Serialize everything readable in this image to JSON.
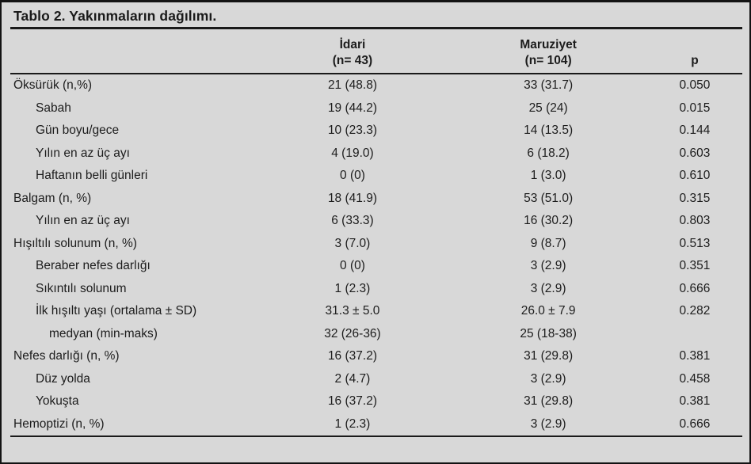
{
  "title": "Tablo 2. Yakınmaların dağılımı.",
  "colors": {
    "background": "#d8d8d8",
    "text": "#1c1c1c",
    "rule": "#1a1a1a",
    "frame_border": "#131313"
  },
  "table": {
    "col_headers": {
      "label": "",
      "idari_line1": "İdari",
      "idari_line2": "(n= 43)",
      "maruziyet_line1": "Maruziyet",
      "maruziyet_line2": "(n= 104)",
      "p": "p"
    },
    "rows": [
      {
        "label": "Öksürük (n,%)",
        "indent": 0,
        "idari": "21 (48.8)",
        "maruziyet": "33 (31.7)",
        "p": "0.050"
      },
      {
        "label": "Sabah",
        "indent": 1,
        "idari": "19 (44.2)",
        "maruziyet": "25 (24)",
        "p": "0.015"
      },
      {
        "label": "Gün boyu/gece",
        "indent": 1,
        "idari": "10 (23.3)",
        "maruziyet": "14 (13.5)",
        "p": "0.144"
      },
      {
        "label": "Yılın en az üç ayı",
        "indent": 1,
        "idari": "4 (19.0)",
        "maruziyet": "6 (18.2)",
        "p": "0.603"
      },
      {
        "label": "Haftanın belli günleri",
        "indent": 1,
        "idari": "0 (0)",
        "maruziyet": "1 (3.0)",
        "p": "0.610"
      },
      {
        "label": "Balgam (n, %)",
        "indent": 0,
        "idari": "18 (41.9)",
        "maruziyet": "53 (51.0)",
        "p": "0.315"
      },
      {
        "label": "Yılın en az üç ayı",
        "indent": 1,
        "idari": "6 (33.3)",
        "maruziyet": "16 (30.2)",
        "p": "0.803"
      },
      {
        "label": "Hışıltılı solunum (n, %)",
        "indent": 0,
        "idari": "3 (7.0)",
        "maruziyet": "9 (8.7)",
        "p": "0.513"
      },
      {
        "label": "Beraber nefes darlığı",
        "indent": 1,
        "idari": "0 (0)",
        "maruziyet": "3 (2.9)",
        "p": "0.351"
      },
      {
        "label": "Sıkıntılı solunum",
        "indent": 1,
        "idari": "1 (2.3)",
        "maruziyet": "3 (2.9)",
        "p": "0.666"
      },
      {
        "label": "İlk hışıltı yaşı (ortalama ± SD)",
        "indent": 1,
        "idari": "31.3 ± 5.0",
        "maruziyet": "26.0 ± 7.9",
        "p": "0.282"
      },
      {
        "label": "medyan (min-maks)",
        "indent": 2,
        "idari": "32 (26-36)",
        "maruziyet": "25 (18-38)",
        "p": ""
      },
      {
        "label": "Nefes darlığı (n, %)",
        "indent": 0,
        "idari": "16 (37.2)",
        "maruziyet": "31 (29.8)",
        "p": "0.381"
      },
      {
        "label": "Düz yolda",
        "indent": 1,
        "idari": "2 (4.7)",
        "maruziyet": "3 (2.9)",
        "p": "0.458"
      },
      {
        "label": "Yokuşta",
        "indent": 1,
        "idari": "16 (37.2)",
        "maruziyet": "31 (29.8)",
        "p": "0.381"
      },
      {
        "label": "Hemoptizi (n, %)",
        "indent": 0,
        "idari": "1 (2.3)",
        "maruziyet": "3 (2.9)",
        "p": "0.666"
      }
    ]
  }
}
